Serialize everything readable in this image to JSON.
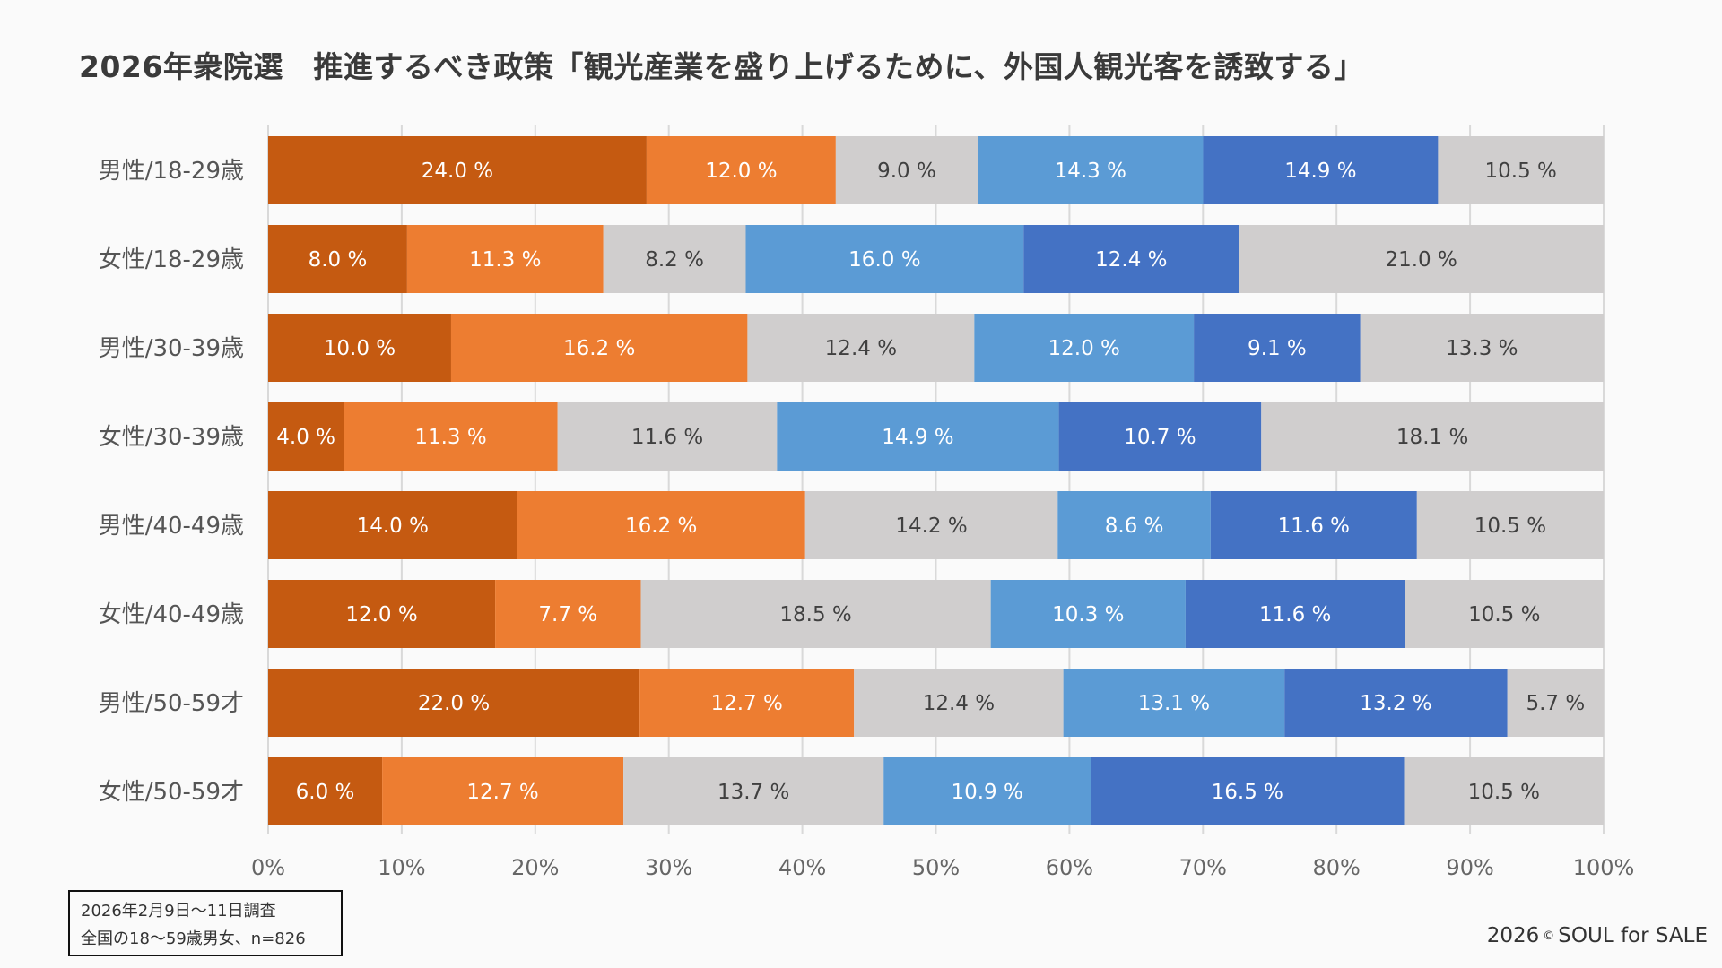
{
  "title": "2026年衆院選　推進するべき政策「観光産業を盛り上げるために、外国人観光客を誘致する」",
  "note": {
    "line1": "2026年2月9日〜11日調査",
    "line2": "全国の18〜59歳男女、n=826"
  },
  "copyright": {
    "year": "2026",
    "symbol": "©",
    "owner": "SOUL for SALE"
  },
  "colors": {
    "segments": [
      "#c55a11",
      "#ed7d31",
      "#d0cece",
      "#5b9bd5",
      "#4472c4",
      "#d0cece"
    ],
    "label_colors": [
      "#ffffff",
      "#ffffff",
      "#404040",
      "#ffffff",
      "#ffffff",
      "#404040"
    ],
    "grid": "#d9d9d9"
  },
  "chart_data": {
    "type": "bar",
    "orientation": "horizontal",
    "stacked": "100%",
    "title": "2026年衆院選　推進するべき政策「観光産業を盛り上げるために、外国人観光客を誘致する」",
    "xlabel": "",
    "ylabel": "",
    "xlim": [
      0,
      100
    ],
    "x_ticks": [
      "0%",
      "10%",
      "20%",
      "30%",
      "40%",
      "50%",
      "60%",
      "70%",
      "80%",
      "90%",
      "100%"
    ],
    "grid": true,
    "legend": "none",
    "categories": [
      "男性/18-29歳",
      "女性/18-29歳",
      "男性/30-39歳",
      "女性/30-39歳",
      "男性/40-49歳",
      "女性/40-49歳",
      "男性/50-59才",
      "女性/50-59才"
    ],
    "series": [
      {
        "name": "series1",
        "values": [
          24.0,
          8.0,
          10.0,
          4.0,
          14.0,
          12.0,
          22.0,
          6.0
        ]
      },
      {
        "name": "series2",
        "values": [
          12.0,
          11.3,
          16.2,
          11.3,
          16.2,
          7.7,
          12.7,
          12.7
        ]
      },
      {
        "name": "series3",
        "values": [
          9.0,
          8.2,
          12.4,
          11.6,
          14.2,
          18.5,
          12.4,
          13.7
        ]
      },
      {
        "name": "series4",
        "values": [
          14.3,
          16.0,
          12.0,
          14.9,
          8.6,
          10.3,
          13.1,
          10.9
        ]
      },
      {
        "name": "series5",
        "values": [
          14.9,
          12.4,
          9.1,
          10.7,
          11.6,
          11.6,
          13.2,
          16.5
        ]
      },
      {
        "name": "series6",
        "values": [
          10.5,
          21.0,
          13.3,
          18.1,
          10.5,
          10.5,
          5.7,
          10.5
        ]
      }
    ],
    "value_label_suffix": " %"
  }
}
